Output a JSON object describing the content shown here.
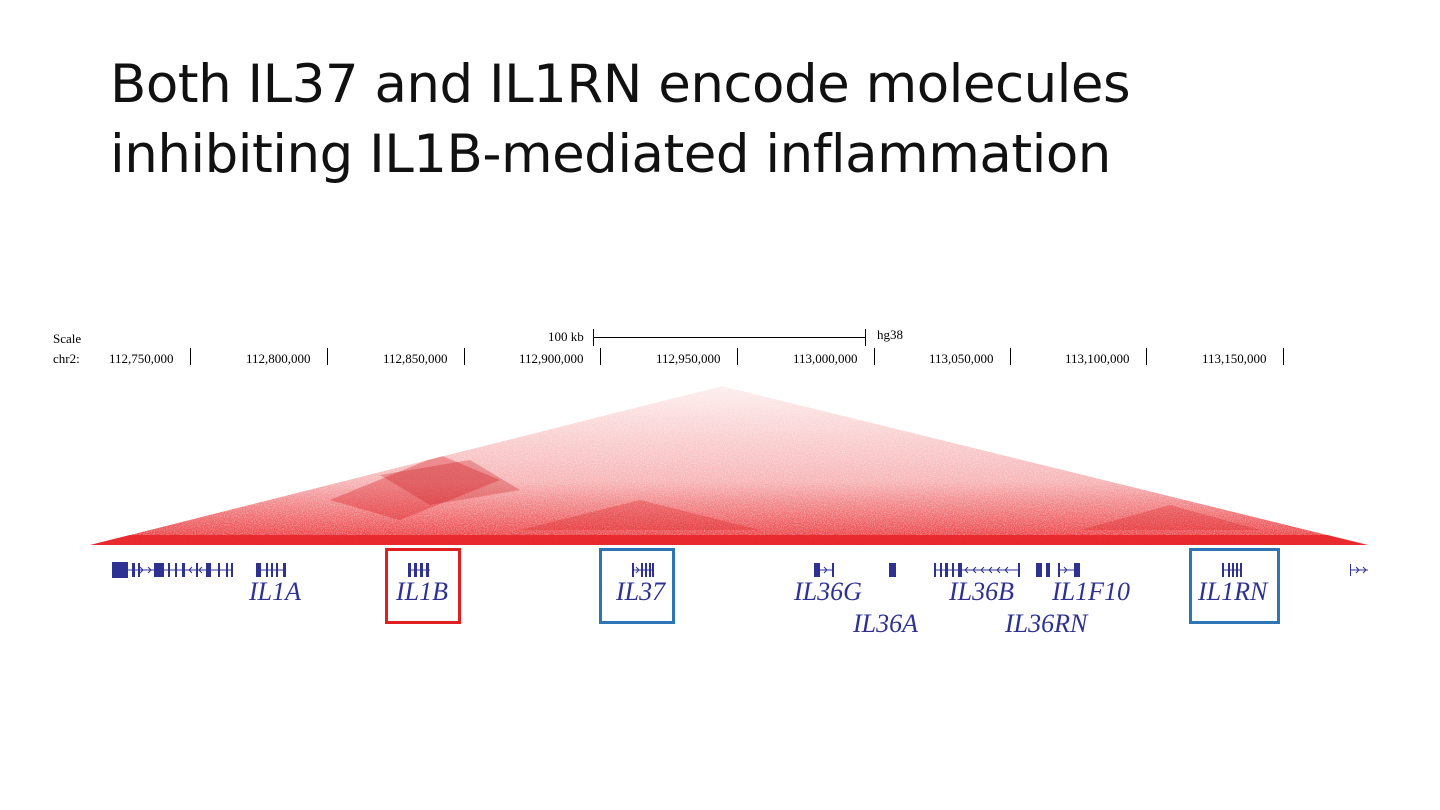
{
  "slide": {
    "title_line1": "Both IL37 and IL1RN encode molecules",
    "title_line2": "inhibiting IL1B-mediated inflammation"
  },
  "browser": {
    "scale_label": "Scale",
    "chrom_label": "chr2:",
    "scalebar_label": "100 kb",
    "assembly": "hg38",
    "coordinates": [
      "112,750,000",
      "112,800,000",
      "112,850,000",
      "112,900,000",
      "112,950,000",
      "113,000,000",
      "113,050,000",
      "113,100,000",
      "113,150,000"
    ]
  },
  "genes": {
    "il1a": "IL1A",
    "il1b": "IL1B",
    "il37": "IL37",
    "il36g": "IL36G",
    "il36a": "IL36A",
    "il36b": "IL36B",
    "il1f10": "IL1F10",
    "il36rn": "IL36RN",
    "il1rn": "IL1RN"
  },
  "colors": {
    "title_text": "#111111",
    "heatmap": "#e8262a",
    "gene_track": "#2e3192",
    "highlight_red": "#e02020",
    "highlight_blue": "#2e75b6"
  }
}
